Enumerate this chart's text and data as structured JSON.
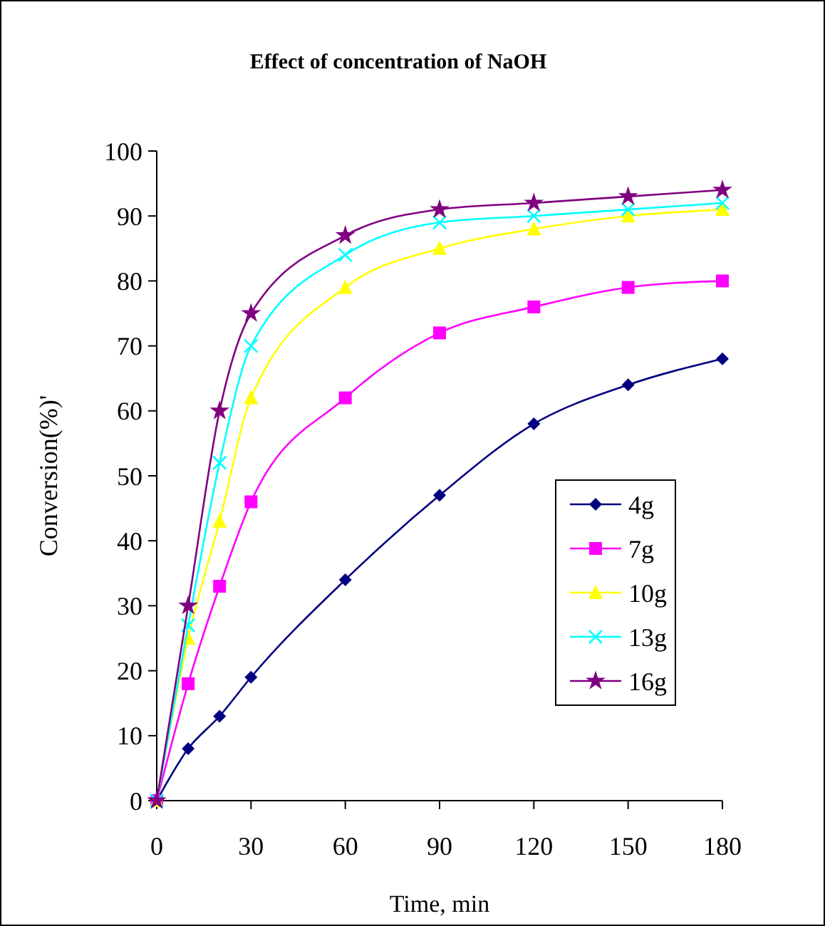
{
  "chart_data": {
    "type": "line",
    "title": "Effect of concentration of NaOH",
    "xlabel": "Time, min",
    "ylabel": "Conversion(%)'",
    "x": [
      0,
      10,
      20,
      30,
      60,
      90,
      120,
      150,
      180
    ],
    "series": [
      {
        "name": "4g",
        "color": "#000080",
        "marker": "diamond",
        "values": [
          0,
          8,
          13,
          19,
          34,
          47,
          58,
          64,
          68
        ]
      },
      {
        "name": "7g",
        "color": "#ff00ff",
        "marker": "square",
        "values": [
          0,
          18,
          33,
          46,
          62,
          72,
          76,
          79,
          80
        ]
      },
      {
        "name": "10g",
        "color": "#ffff00",
        "marker": "triangle",
        "values": [
          0,
          25,
          43,
          62,
          79,
          85,
          88,
          90,
          91
        ]
      },
      {
        "name": "13g",
        "color": "#00ffff",
        "marker": "cross",
        "values": [
          0,
          27,
          52,
          70,
          84,
          89,
          90,
          91,
          92
        ]
      },
      {
        "name": "16g",
        "color": "#800080",
        "marker": "star",
        "values": [
          0,
          30,
          60,
          75,
          87,
          91,
          92,
          93,
          94
        ]
      }
    ],
    "xlim": [
      0,
      180
    ],
    "xticks": [
      0,
      30,
      60,
      90,
      120,
      150,
      180
    ],
    "ylim": [
      0,
      100
    ],
    "yticks": [
      0,
      10,
      20,
      30,
      40,
      50,
      60,
      70,
      80,
      90,
      100
    ],
    "grid": false,
    "legend": "right",
    "line_style": "solid"
  }
}
